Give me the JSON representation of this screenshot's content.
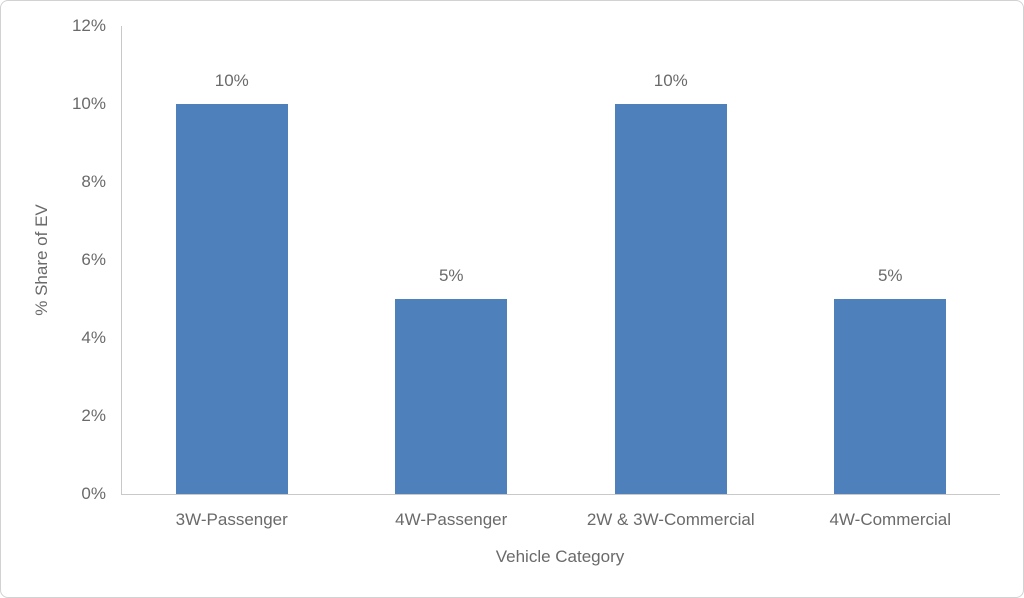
{
  "chart_data": {
    "type": "bar",
    "categories": [
      "3W-Passenger",
      "4W-Passenger",
      "2W & 3W-Commercial",
      "4W-Commercial"
    ],
    "values": [
      10,
      5,
      10,
      5
    ],
    "data_labels": [
      "10%",
      "5%",
      "10%",
      "5%"
    ],
    "title": "",
    "xlabel": "Vehicle Category",
    "ylabel": "% Share of EV",
    "ylim": [
      0,
      12
    ],
    "ytick_step": 2,
    "ytick_labels": [
      "0%",
      "2%",
      "4%",
      "6%",
      "8%",
      "10%",
      "12%"
    ],
    "grid": false,
    "legend": false,
    "bar_color": "#4e80bc",
    "text_color": "#6a6a6a",
    "axis_line_color": "#c9c9c9",
    "background_color": "#ffffff"
  }
}
